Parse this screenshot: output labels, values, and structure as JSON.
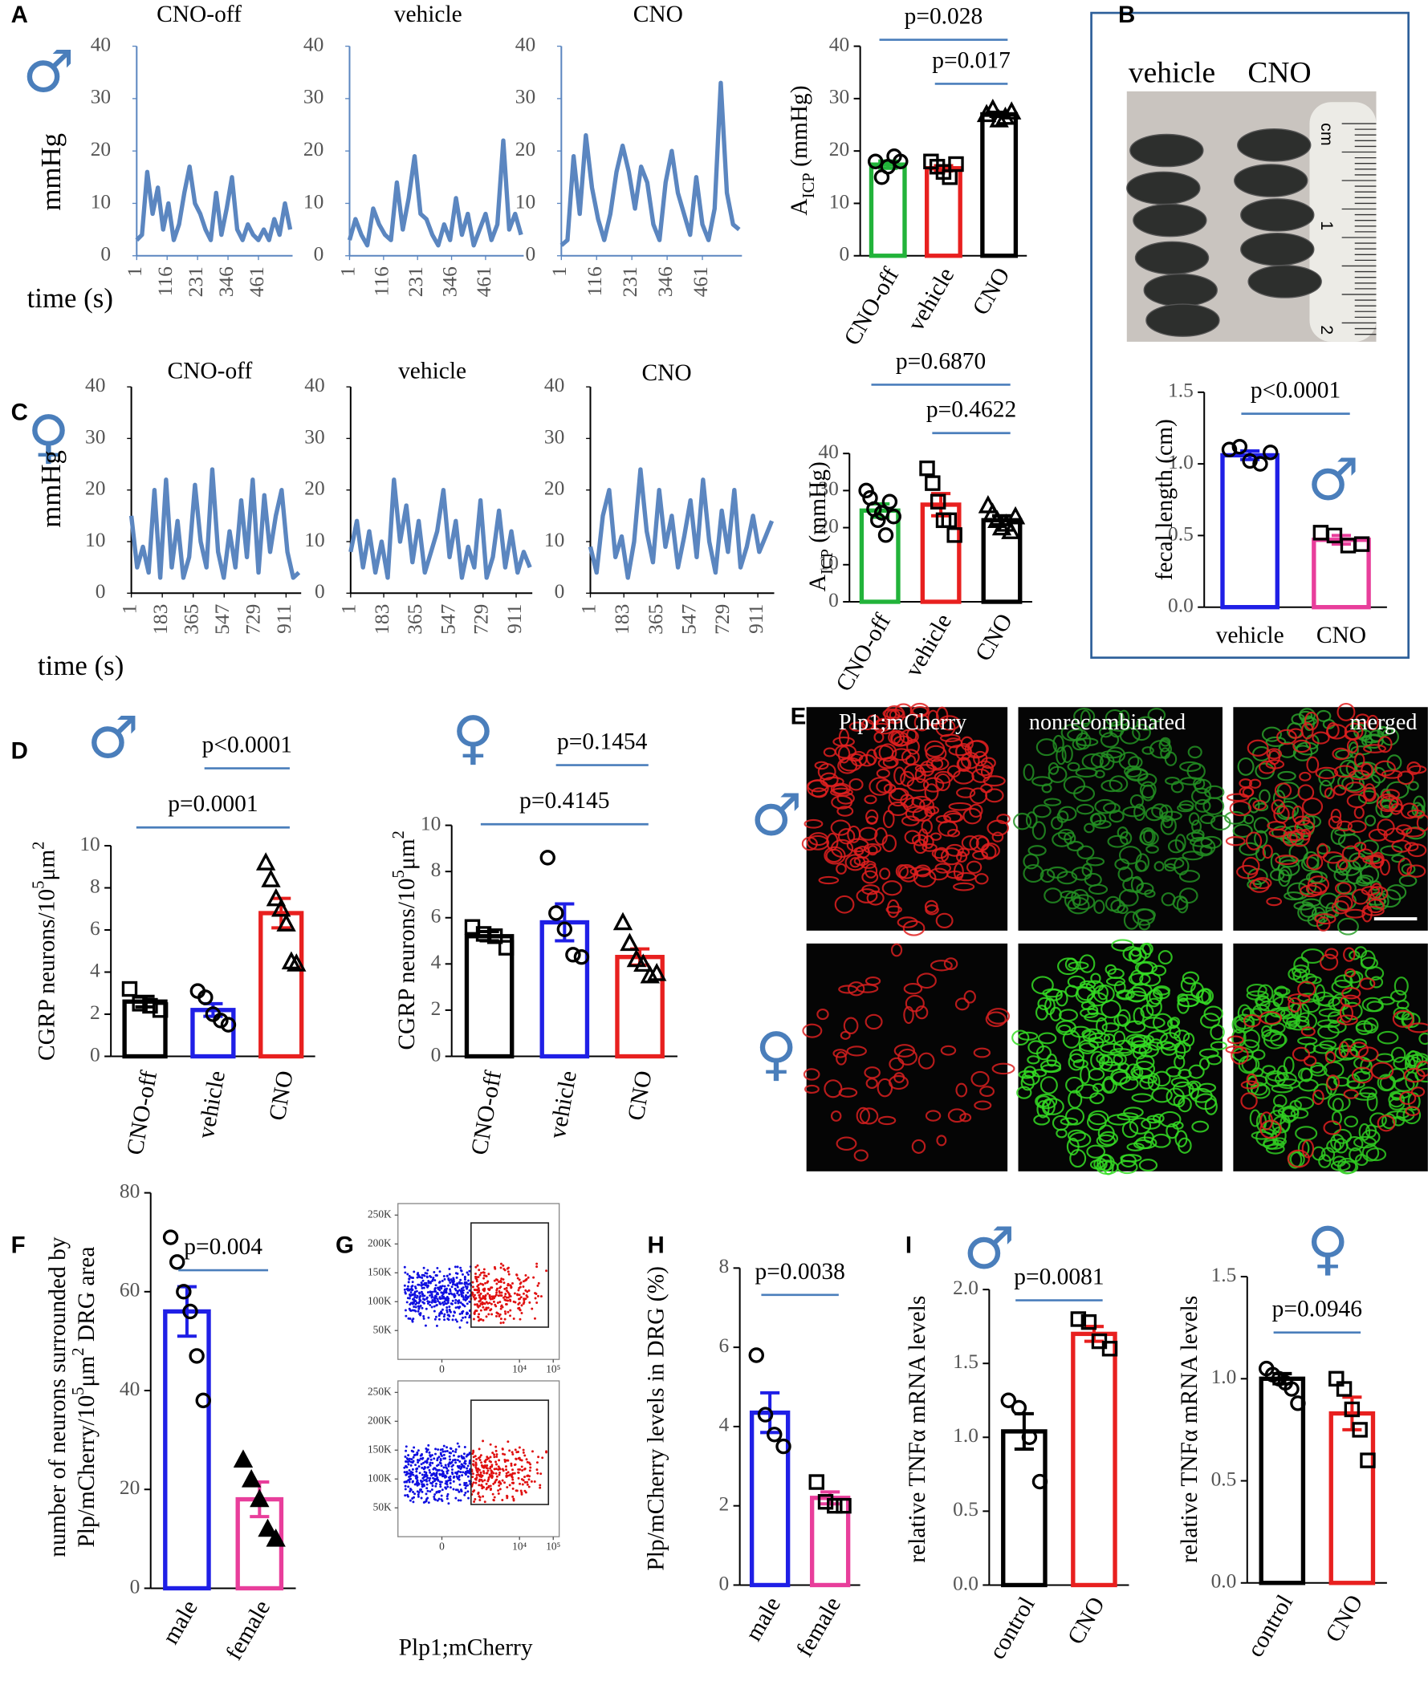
{
  "chart_data": [
    {
      "type": "line",
      "panel": "A",
      "sex": "♂",
      "title": "CNO-off",
      "ylabel": "mmHg",
      "xlabel": "time (s)",
      "color": "#5b86c0",
      "axis_color": "#5b86c0",
      "x": [
        1,
        21,
        41,
        61,
        81,
        101,
        121,
        141,
        161,
        181,
        201,
        221,
        241,
        261,
        281,
        301,
        321,
        341,
        361,
        381,
        401,
        421,
        441,
        461,
        481,
        501,
        521,
        541,
        561,
        581
      ],
      "values": [
        3,
        4,
        16,
        8,
        13,
        5,
        10,
        3,
        6,
        12,
        17,
        10,
        8,
        5,
        3,
        12,
        4,
        9,
        15,
        5,
        3,
        6,
        4,
        3,
        5,
        3,
        7,
        4,
        10,
        5
      ],
      "xlim": [
        1,
        590
      ],
      "ylim": [
        0,
        40
      ],
      "xticks": [
        1,
        116,
        231,
        346,
        461
      ],
      "yticks": [
        0,
        10,
        20,
        30,
        40
      ]
    },
    {
      "type": "line",
      "title": "vehicle",
      "color": "#5b86c0",
      "axis_color": "#5b86c0",
      "x": [
        1,
        21,
        41,
        61,
        81,
        101,
        121,
        141,
        161,
        181,
        201,
        221,
        241,
        261,
        281,
        301,
        321,
        341,
        361,
        381,
        401,
        421,
        441,
        461,
        481,
        501,
        521,
        541,
        561,
        581
      ],
      "values": [
        3,
        7,
        4,
        2,
        9,
        6,
        4,
        3,
        14,
        5,
        11,
        19,
        8,
        7,
        4,
        2,
        6,
        3,
        11,
        4,
        8,
        2,
        5,
        8,
        3,
        6,
        22,
        5,
        8,
        4
      ],
      "xlim": [
        1,
        590
      ],
      "ylim": [
        0,
        40
      ],
      "xticks": [
        1,
        116,
        231,
        346,
        461
      ],
      "yticks": [
        0,
        10,
        20,
        30,
        40
      ]
    },
    {
      "type": "line",
      "title": "CNO",
      "color": "#5b86c0",
      "axis_color": "#5b86c0",
      "x": [
        1,
        21,
        41,
        61,
        81,
        101,
        121,
        141,
        161,
        181,
        201,
        221,
        241,
        261,
        281,
        301,
        321,
        341,
        361,
        381,
        401,
        421,
        441,
        461,
        481,
        501,
        521,
        541,
        561,
        581
      ],
      "values": [
        2,
        3,
        19,
        8,
        23,
        13,
        7,
        3,
        8,
        16,
        21,
        16,
        9,
        17,
        14,
        6,
        3,
        14,
        20,
        12,
        8,
        4,
        15,
        6,
        3,
        9,
        33,
        12,
        6,
        5
      ],
      "xlim": [
        1,
        590
      ],
      "ylim": [
        0,
        40
      ],
      "xticks": [
        1,
        116,
        231,
        346,
        461
      ],
      "yticks": [
        0,
        10,
        20,
        30,
        40
      ]
    },
    {
      "type": "bar",
      "ylabel": [
        {
          "text": "A"
        },
        {
          "text": "ICP",
          "sub": true
        },
        {
          "text": " (mmHg)"
        }
      ],
      "categories": [
        "CNO-off",
        "vehicle",
        "CNO"
      ],
      "colors": [
        "#22b33a",
        "#e8201f",
        "#000000"
      ],
      "markers": [
        "circle",
        "square",
        "triangle"
      ],
      "values": [
        17.4,
        16.7,
        27.0
      ],
      "errors": [
        0.7,
        0.5,
        0.4
      ],
      "points": [
        [
          18,
          15,
          17,
          19,
          18
        ],
        [
          18,
          17,
          16,
          15,
          17.5
        ],
        [
          27,
          28,
          26,
          26.5,
          27.5
        ]
      ],
      "ylim": [
        0,
        40
      ],
      "yticks": [
        0,
        10,
        20,
        30,
        40
      ],
      "annotations": [
        {
          "text": "p=0.028",
          "span": [
            0,
            2
          ]
        },
        {
          "text": "p=0.017",
          "span": [
            1,
            2
          ]
        }
      ]
    },
    {
      "type": "photo",
      "panel": "B",
      "labels": [
        "vehicle",
        "CNO"
      ],
      "ruler_labels": [
        "cm",
        "1",
        "2"
      ]
    },
    {
      "type": "bar",
      "sex": "♂",
      "ylabel": "fecal length (cm)",
      "categories": [
        "vehicle",
        "CNO"
      ],
      "colors": [
        "#1f1fe6",
        "#e83e9b"
      ],
      "markers": [
        "circle",
        "square"
      ],
      "values": [
        1.06,
        0.47
      ],
      "errors": [
        0.03,
        0.03
      ],
      "points": [
        [
          1.1,
          1.12,
          1.02,
          1.0,
          1.08
        ],
        [
          0.52,
          0.5,
          0.43,
          0.44
        ]
      ],
      "ylim": [
        0,
        1.5
      ],
      "yticks": [
        {
          "value": 0,
          "label": "0.0"
        },
        0.5,
        {
          "value": 1,
          "label": "1.0"
        },
        1.5
      ],
      "annotations": [
        {
          "text": "p<0.0001",
          "span": [
            0,
            1
          ]
        }
      ]
    },
    {
      "type": "line",
      "panel": "C",
      "sex": "♀",
      "title": "CNO-off",
      "ylabel": "mmHg",
      "xlabel": "time (s)",
      "color": "#5b86c0",
      "axis_color": "#000000",
      "x": [
        1,
        35,
        69,
        103,
        137,
        171,
        205,
        239,
        273,
        307,
        341,
        375,
        409,
        443,
        477,
        511,
        545,
        579,
        613,
        647,
        681,
        715,
        749,
        783,
        817,
        851,
        885,
        919,
        953,
        987
      ],
      "values": [
        15,
        5,
        9,
        4,
        20,
        3,
        22,
        5,
        14,
        3,
        7,
        21,
        10,
        5,
        24,
        8,
        3,
        12,
        5,
        18,
        7,
        22,
        4,
        19,
        8,
        15,
        20,
        8,
        3,
        4
      ],
      "xlim": [
        1,
        1000
      ],
      "ylim": [
        0,
        40
      ],
      "xticks": [
        1,
        183,
        365,
        547,
        729,
        911
      ],
      "yticks": [
        0,
        10,
        20,
        30,
        40
      ]
    },
    {
      "type": "line",
      "title": "vehicle",
      "color": "#5b86c0",
      "axis_color": "#000000",
      "x": [
        1,
        35,
        69,
        103,
        137,
        171,
        205,
        239,
        273,
        307,
        341,
        375,
        409,
        443,
        477,
        511,
        545,
        579,
        613,
        647,
        681,
        715,
        749,
        783,
        817,
        851,
        885,
        919,
        953,
        987
      ],
      "values": [
        8,
        14,
        5,
        12,
        4,
        10,
        3,
        22,
        10,
        17,
        6,
        14,
        4,
        8,
        12,
        20,
        7,
        14,
        3,
        9,
        5,
        18,
        3,
        7,
        16,
        5,
        12,
        4,
        8,
        5
      ],
      "xlim": [
        1,
        1000
      ],
      "ylim": [
        0,
        40
      ],
      "xticks": [
        1,
        183,
        365,
        547,
        729,
        911
      ],
      "yticks": [
        0,
        10,
        20,
        30,
        40
      ]
    },
    {
      "type": "line",
      "title": "CNO",
      "color": "#5b86c0",
      "axis_color": "#000000",
      "x": [
        1,
        35,
        69,
        103,
        137,
        171,
        205,
        239,
        273,
        307,
        341,
        375,
        409,
        443,
        477,
        511,
        545,
        579,
        613,
        647,
        681,
        715,
        749,
        783,
        817,
        851,
        885,
        919,
        953,
        987
      ],
      "values": [
        9,
        4,
        15,
        20,
        7,
        11,
        3,
        10,
        24,
        12,
        6,
        20,
        9,
        15,
        5,
        11,
        18,
        7,
        22,
        10,
        4,
        16,
        8,
        20,
        5,
        9,
        15,
        8,
        11,
        14
      ],
      "xlim": [
        1,
        1000
      ],
      "ylim": [
        0,
        40
      ],
      "xticks": [
        1,
        183,
        365,
        547,
        729,
        911
      ],
      "yticks": [
        0,
        10,
        20,
        30,
        40
      ]
    },
    {
      "type": "bar",
      "ylabel": [
        {
          "text": "A"
        },
        {
          "text": "ICP",
          "sub": true
        },
        {
          "text": " (mmHg)"
        }
      ],
      "categories": [
        "CNO-off",
        "vehicle",
        "CNO"
      ],
      "colors": [
        "#22b33a",
        "#e8201f",
        "#000000"
      ],
      "markers": [
        "circle",
        "square",
        "triangle"
      ],
      "values": [
        24.6,
        26.2,
        22.0
      ],
      "errors": [
        1.8,
        3.0,
        1.2
      ],
      "points": [
        [
          30,
          28,
          25,
          22,
          24,
          18,
          27,
          23
        ],
        [
          36,
          32,
          27,
          22,
          22,
          18
        ],
        [
          26,
          24,
          22,
          20,
          21,
          19,
          23
        ]
      ],
      "ylim": [
        0,
        40
      ],
      "yticks": [
        0,
        10,
        20,
        30,
        40
      ],
      "annotations": [
        {
          "text": "p=0.6870",
          "span": [
            0,
            2
          ]
        },
        {
          "text": "p=0.4622",
          "span": [
            1,
            2
          ]
        }
      ]
    },
    {
      "type": "bar",
      "panel": "D",
      "sex": "♂",
      "ylabel": [
        {
          "text": "CGRP neurons/10"
        },
        {
          "text": "5",
          "sup": true
        },
        {
          "text": "μm"
        },
        {
          "text": "2",
          "sup": true
        }
      ],
      "categories": [
        "CNO-off",
        "vehicle",
        "CNO"
      ],
      "colors": [
        "#000000",
        "#1f1fe6",
        "#e8201f"
      ],
      "markers": [
        "square",
        "circle",
        "triangle"
      ],
      "values": [
        2.6,
        2.2,
        6.8
      ],
      "errors": [
        0.25,
        0.3,
        0.7
      ],
      "points": [
        [
          3.2,
          2.5,
          2.4,
          2.2
        ],
        [
          3.1,
          2.8,
          2.0,
          1.7,
          1.5
        ],
        [
          9.2,
          8.4,
          7.5,
          7.0,
          6.3,
          4.5,
          4.4
        ]
      ],
      "ylim": [
        0,
        10
      ],
      "yticks": [
        0,
        2,
        4,
        6,
        8,
        10
      ],
      "annotations": [
        {
          "text": "p<0.0001",
          "span": [
            1,
            2
          ]
        },
        {
          "text": "p=0.0001",
          "span": [
            0,
            2
          ]
        }
      ]
    },
    {
      "type": "bar",
      "sex": "♀",
      "ylabel": [
        {
          "text": "CGRP neurons/10"
        },
        {
          "text": "5",
          "sup": true
        },
        {
          "text": "μm"
        },
        {
          "text": "2",
          "sup": true
        }
      ],
      "categories": [
        "CNO-off",
        "vehicle",
        "CNO"
      ],
      "colors": [
        "#000000",
        "#1f1fe6",
        "#e8201f"
      ],
      "markers": [
        "square",
        "circle",
        "triangle"
      ],
      "values": [
        5.2,
        5.8,
        4.3
      ],
      "errors": [
        0.2,
        0.8,
        0.35
      ],
      "points": [
        [
          5.6,
          5.3,
          5.2,
          4.7
        ],
        [
          8.6,
          6.2,
          5.5,
          4.4,
          4.3
        ],
        [
          5.8,
          4.9,
          4.2,
          4.0,
          3.5,
          3.6
        ]
      ],
      "ylim": [
        0,
        10
      ],
      "yticks": [
        0,
        2,
        4,
        6,
        8,
        10
      ],
      "annotations": [
        {
          "text": "p=0.1454",
          "span": [
            1,
            2
          ]
        },
        {
          "text": "p=0.4145",
          "span": [
            0,
            2
          ]
        }
      ]
    },
    {
      "type": "micrograph",
      "panel": "E",
      "columns": [
        "Plp1;mCherry",
        "nonrecombinated",
        "merged"
      ],
      "rows": [
        "♂",
        "♀"
      ]
    },
    {
      "type": "bar",
      "panel": "F",
      "ylabel": [
        [
          {
            "text": "number of neurons surrounded by"
          }
        ],
        [
          {
            "text": "Plp/mCherry/10"
          },
          {
            "text": "5",
            "sup": true
          },
          {
            "text": "μm"
          },
          {
            "text": "2",
            "sup": true
          },
          {
            "text": " DRG area"
          }
        ]
      ],
      "categories": [
        "male",
        "female"
      ],
      "colors": [
        "#1f1fe6",
        "#e83e9b"
      ],
      "markers": [
        "circle",
        "triangle-filled"
      ],
      "values": [
        56,
        18
      ],
      "errors": [
        5,
        3.5
      ],
      "points": [
        [
          71,
          66,
          60,
          56,
          47,
          38
        ],
        [
          26,
          22,
          18,
          12,
          10
        ]
      ],
      "ylim": [
        0,
        80
      ],
      "yticks": [
        0,
        20,
        40,
        60,
        80
      ],
      "annotations": [
        {
          "text": "p=0.004",
          "span": [
            0,
            1
          ]
        }
      ]
    },
    {
      "type": "flow",
      "panel": "G",
      "sex": "♂",
      "xscale": "asinh",
      "xlim": [
        -1000,
        150000
      ],
      "ylim": [
        0,
        270000
      ],
      "yticks": [
        {
          "value": 50000,
          "label": "50K"
        },
        {
          "value": 100000,
          "label": "100K"
        },
        {
          "value": 150000,
          "label": "150K"
        },
        {
          "value": 200000,
          "label": "200K"
        },
        {
          "value": 250000,
          "label": "250K"
        }
      ],
      "xticks": [
        {
          "value": 0,
          "label": "0"
        },
        {
          "value": 10000,
          "label": "10⁴"
        },
        {
          "value": 100000,
          "label": "10⁵"
        }
      ]
    },
    {
      "type": "flow",
      "sex": "♀",
      "xlabel": "Plp1;mCherry",
      "xscale": "asinh",
      "xlim": [
        -1000,
        150000
      ],
      "ylim": [
        0,
        270000
      ],
      "yticks": [
        {
          "value": 50000,
          "label": "50K"
        },
        {
          "value": 100000,
          "label": "100K"
        },
        {
          "value": 150000,
          "label": "150K"
        },
        {
          "value": 200000,
          "label": "200K"
        },
        {
          "value": 250000,
          "label": "250K"
        }
      ],
      "xticks": [
        {
          "value": 0,
          "label": "0"
        },
        {
          "value": 10000,
          "label": "10⁴"
        },
        {
          "value": 100000,
          "label": "10⁵"
        }
      ]
    },
    {
      "type": "bar",
      "panel": "H",
      "ylabel": "Plp/mCherry levels in DRG (%)",
      "categories": [
        "male",
        "female"
      ],
      "colors": [
        "#1f1fe6",
        "#e83e9b"
      ],
      "markers": [
        "circle",
        "square"
      ],
      "values": [
        4.35,
        2.2
      ],
      "errors": [
        0.5,
        0.15
      ],
      "points": [
        [
          5.8,
          4.3,
          3.8,
          3.5
        ],
        [
          2.6,
          2.1,
          2.0,
          2.0
        ]
      ],
      "ylim": [
        0,
        8
      ],
      "yticks": [
        0,
        2,
        4,
        6,
        8
      ],
      "annotations": [
        {
          "text": "p=0.0038",
          "span": [
            0,
            1
          ]
        }
      ]
    },
    {
      "type": "bar",
      "panel": "I",
      "sex": "♂",
      "ylabel": "relative TNFα mRNA levels",
      "categories": [
        "control",
        "CNO"
      ],
      "colors": [
        "#000000",
        "#e8201f"
      ],
      "markers": [
        "circle",
        "square"
      ],
      "values": [
        1.04,
        1.7
      ],
      "errors": [
        0.12,
        0.05
      ],
      "points": [
        [
          1.25,
          1.2,
          1.0,
          0.7
        ],
        [
          1.8,
          1.78,
          1.65,
          1.6
        ]
      ],
      "ylim": [
        0,
        2
      ],
      "yticks": [
        {
          "value": 0,
          "label": "0.0"
        },
        0.5,
        {
          "value": 1,
          "label": "1.0"
        },
        1.5,
        {
          "value": 2,
          "label": "2.0"
        }
      ],
      "annotations": [
        {
          "text": "p=0.0081",
          "span": [
            0,
            1
          ]
        }
      ]
    },
    {
      "type": "bar",
      "sex": "♀",
      "ylabel": "relative TNFα mRNA levels",
      "categories": [
        "control",
        "CNO"
      ],
      "colors": [
        "#000000",
        "#e8201f"
      ],
      "markers": [
        "circle",
        "square"
      ],
      "values": [
        1.0,
        0.83
      ],
      "errors": [
        0.025,
        0.08
      ],
      "points": [
        [
          1.05,
          1.02,
          1.0,
          0.98,
          0.95,
          0.88
        ],
        [
          1.0,
          0.95,
          0.85,
          0.75,
          0.6
        ]
      ],
      "ylim": [
        0,
        1.5
      ],
      "yticks": [
        {
          "value": 0,
          "label": "0.0"
        },
        0.5,
        {
          "value": 1,
          "label": "1.0"
        },
        1.5
      ],
      "annotations": [
        {
          "text": "p=0.0946",
          "span": [
            0,
            1
          ]
        }
      ]
    }
  ]
}
